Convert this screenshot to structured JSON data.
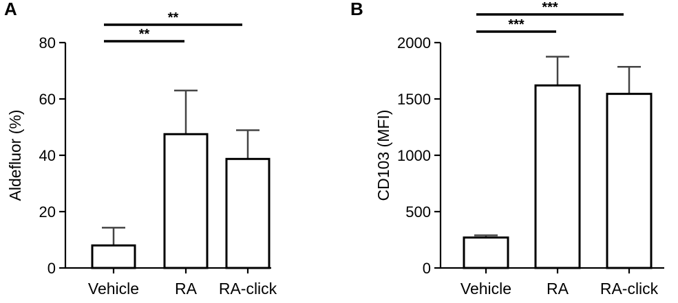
{
  "chart_data": [
    {
      "type": "bar",
      "panel": "A",
      "categories": [
        "Vehicle",
        "RA",
        "RA-click"
      ],
      "values": [
        8,
        47.5,
        38.7
      ],
      "errors": [
        6.3,
        15.5,
        10.2
      ],
      "ylabel": "Aldefluor (%)",
      "ylim": [
        0,
        80
      ],
      "yticks": [
        0,
        20,
        40,
        60,
        80
      ],
      "significance": [
        {
          "from": 0,
          "to": 1,
          "label": "**"
        },
        {
          "from": 0,
          "to": 2,
          "label": "**"
        }
      ]
    },
    {
      "type": "bar",
      "panel": "B",
      "categories": [
        "Vehicle",
        "RA",
        "RA-click"
      ],
      "values": [
        270,
        1620,
        1545
      ],
      "errors": [
        20,
        255,
        240
      ],
      "ylabel": "CD103 (MFI)",
      "ylim": [
        0,
        2000
      ],
      "yticks": [
        0,
        500,
        1000,
        1500,
        2000
      ],
      "significance": [
        {
          "from": 0,
          "to": 1,
          "label": "***"
        },
        {
          "from": 0,
          "to": 2,
          "label": "***"
        }
      ]
    }
  ]
}
